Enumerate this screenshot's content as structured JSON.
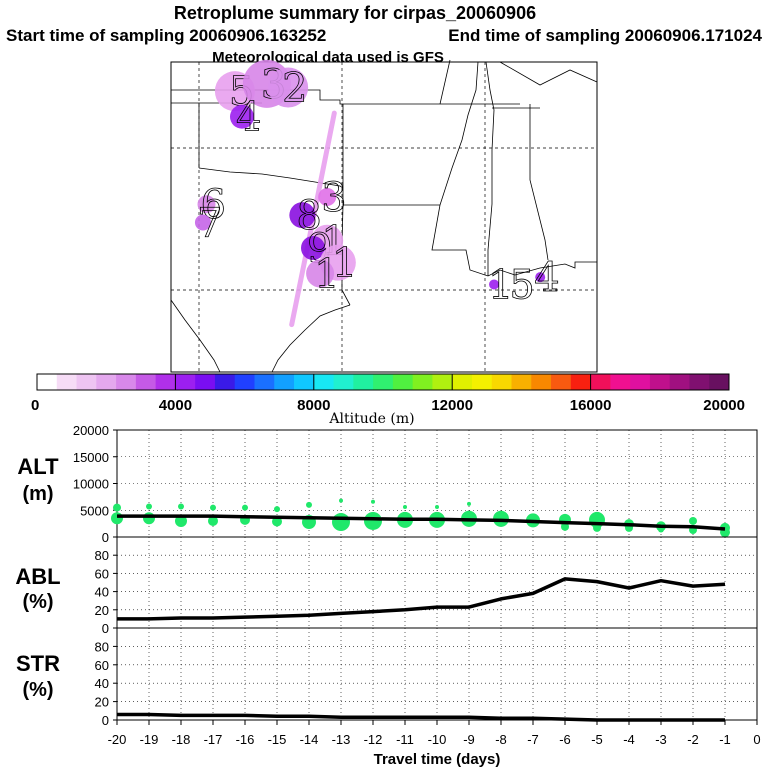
{
  "header": {
    "title": "Retroplume summary for cirpas_20060906",
    "start_label": "Start time of sampling 20060906.163252",
    "end_label": "End time of sampling 20060906.171024",
    "met_label": "Meteorological data used is GFS"
  },
  "map": {
    "markers": [
      {
        "label": "5",
        "color": "#e8a0ee",
        "lon": -96.2,
        "lat": 37.2
      },
      {
        "label": "3",
        "color": "#d785e8",
        "lon": -95.3,
        "lat": 37.4
      },
      {
        "label": "2",
        "color": "#d990ec",
        "lon": -94.7,
        "lat": 37.3
      },
      {
        "label": "4",
        "color": "#9c1ff0",
        "lon": -96.0,
        "lat": 36.5
      },
      {
        "label": "6",
        "color": "#d785e8",
        "lon": -97.0,
        "lat": 34.1
      },
      {
        "label": "7",
        "color": "#c565e8",
        "lon": -97.1,
        "lat": 33.6
      },
      {
        "label": "3",
        "color": "#e070e8",
        "lon": -93.6,
        "lat": 34.3
      },
      {
        "label": "8",
        "color": "#8a10e0",
        "lon": -94.3,
        "lat": 33.8
      },
      {
        "label": "1",
        "color": "#e8a0ee",
        "lon": -93.6,
        "lat": 33.1
      },
      {
        "label": "9",
        "color": "#8a10e0",
        "lon": -94.0,
        "lat": 32.9
      },
      {
        "label": "1",
        "color": "#e8a0ee",
        "lon": -93.3,
        "lat": 32.5
      },
      {
        "label": "1",
        "color": "#d785e8",
        "lon": -93.8,
        "lat": 32.2
      },
      {
        "label": "1",
        "color": "#9c1ff0",
        "lon": -88.9,
        "lat": 31.9
      },
      {
        "label": "5",
        "color": "#ffffff",
        "lon": -88.3,
        "lat": 31.9
      },
      {
        "label": "4",
        "color": "#9c1ff0",
        "lon": -87.6,
        "lat": 32.1
      }
    ],
    "track": [
      [
        -93.4,
        36.6
      ],
      [
        -94.1,
        33.2
      ],
      [
        -94.6,
        30.8
      ]
    ]
  },
  "colorbar": {
    "ticks": [
      "0",
      "4000",
      "8000",
      "12000",
      "16000",
      "20000"
    ],
    "label": "Altitude (m)",
    "colors": [
      "#ffffff",
      "#f6dcf6",
      "#eec4f2",
      "#e4a8ee",
      "#d888ea",
      "#c55ae6",
      "#b030ea",
      "#9c1ff0",
      "#7a0ef2",
      "#3a1ae8",
      "#2040ff",
      "#1a70ff",
      "#12a0ff",
      "#10c8ff",
      "#18e8f4",
      "#20f0d0",
      "#20f0a0",
      "#30f070",
      "#50f040",
      "#80f020",
      "#b0f010",
      "#e0f000",
      "#f4f000",
      "#f8d800",
      "#f8b000",
      "#f88800",
      "#f85a10",
      "#f82010",
      "#f0105a",
      "#f01090",
      "#e010a0",
      "#c0108c",
      "#a01080",
      "#801070",
      "#681060"
    ]
  },
  "chart_data": [
    {
      "type": "line",
      "ylabel": "ALT\n(m)",
      "ylabel_line1": "ALT",
      "ylabel_line2": "(m)",
      "ylim": [
        0,
        20000
      ],
      "yticks": [
        "0",
        "5000",
        "10000",
        "15000",
        "20000"
      ],
      "x": [
        -20,
        -19,
        -18,
        -17,
        -16,
        -15,
        -14,
        -13,
        -12,
        -11,
        -10,
        -9,
        -8,
        -7,
        -6,
        -5,
        -4,
        -3,
        -2,
        -1
      ],
      "series": [
        {
          "name": "mean altitude",
          "values": [
            3900,
            3900,
            3900,
            3900,
            3800,
            3700,
            3600,
            3500,
            3400,
            3300,
            3300,
            3200,
            3100,
            2900,
            2700,
            2500,
            2300,
            2000,
            1900,
            1500
          ]
        }
      ],
      "scatter": [
        {
          "x": -20,
          "y": 3500,
          "s": 6
        },
        {
          "x": -20,
          "y": 5500,
          "s": 4
        },
        {
          "x": -19,
          "y": 3500,
          "s": 6
        },
        {
          "x": -19,
          "y": 5700,
          "s": 3
        },
        {
          "x": -18,
          "y": 3000,
          "s": 6
        },
        {
          "x": -18,
          "y": 5700,
          "s": 3
        },
        {
          "x": -17,
          "y": 3000,
          "s": 5
        },
        {
          "x": -17,
          "y": 5500,
          "s": 3
        },
        {
          "x": -16,
          "y": 3200,
          "s": 5
        },
        {
          "x": -16,
          "y": 5500,
          "s": 3
        },
        {
          "x": -15,
          "y": 2900,
          "s": 5
        },
        {
          "x": -15,
          "y": 5200,
          "s": 3
        },
        {
          "x": -14,
          "y": 2800,
          "s": 7
        },
        {
          "x": -14,
          "y": 6000,
          "s": 3
        },
        {
          "x": -13,
          "y": 2800,
          "s": 9
        },
        {
          "x": -13,
          "y": 6800,
          "s": 2
        },
        {
          "x": -12,
          "y": 3000,
          "s": 9
        },
        {
          "x": -12,
          "y": 6600,
          "s": 2
        },
        {
          "x": -11,
          "y": 3200,
          "s": 8
        },
        {
          "x": -11,
          "y": 5600,
          "s": 2
        },
        {
          "x": -10,
          "y": 3200,
          "s": 8
        },
        {
          "x": -10,
          "y": 5600,
          "s": 2
        },
        {
          "x": -9,
          "y": 3400,
          "s": 8
        },
        {
          "x": -9,
          "y": 6200,
          "s": 2
        },
        {
          "x": -8,
          "y": 3400,
          "s": 8
        },
        {
          "x": -7,
          "y": 3100,
          "s": 7
        },
        {
          "x": -6,
          "y": 3200,
          "s": 6
        },
        {
          "x": -6,
          "y": 1900,
          "s": 4
        },
        {
          "x": -5,
          "y": 3200,
          "s": 8
        },
        {
          "x": -5,
          "y": 1700,
          "s": 4
        },
        {
          "x": -4,
          "y": 2400,
          "s": 5
        },
        {
          "x": -4,
          "y": 1700,
          "s": 4
        },
        {
          "x": -3,
          "y": 2000,
          "s": 5
        },
        {
          "x": -3,
          "y": 1400,
          "s": 3
        },
        {
          "x": -2,
          "y": 3000,
          "s": 4
        },
        {
          "x": -2,
          "y": 1300,
          "s": 4
        },
        {
          "x": -1,
          "y": 1700,
          "s": 5
        },
        {
          "x": -1,
          "y": 900,
          "s": 5
        }
      ]
    },
    {
      "type": "line",
      "ylabel_line1": "ABL",
      "ylabel_line2": "(%)",
      "ylim": [
        0,
        100
      ],
      "yticks": [
        "0",
        "20",
        "40",
        "60",
        "80"
      ],
      "x": [
        -20,
        -19,
        -18,
        -17,
        -16,
        -15,
        -14,
        -13,
        -12,
        -11,
        -10,
        -9,
        -8,
        -7,
        -6,
        -5,
        -4,
        -3,
        -2,
        -1
      ],
      "series": [
        {
          "name": "ABL fraction",
          "values": [
            10,
            10,
            11,
            11,
            12,
            13,
            14,
            16,
            18,
            20,
            23,
            23,
            32,
            38,
            54,
            51,
            44,
            52,
            46,
            48
          ]
        }
      ]
    },
    {
      "type": "line",
      "ylabel_line1": "STR",
      "ylabel_line2": "(%)",
      "ylim": [
        0,
        100
      ],
      "yticks": [
        "0",
        "20",
        "40",
        "60",
        "80"
      ],
      "x": [
        -20,
        -19,
        -18,
        -17,
        -16,
        -15,
        -14,
        -13,
        -12,
        -11,
        -10,
        -9,
        -8,
        -7,
        -6,
        -5,
        -4,
        -3,
        -2,
        -1
      ],
      "series": [
        {
          "name": "stratospheric fraction",
          "values": [
            6,
            6,
            5,
            5,
            5,
            4,
            4,
            3,
            3,
            3,
            3,
            3,
            2,
            2,
            1,
            0,
            0,
            0,
            0,
            0
          ]
        }
      ],
      "xticks": [
        "-20",
        "-19",
        "-18",
        "-17",
        "-16",
        "-15",
        "-14",
        "-13",
        "-12",
        "-11",
        "-10",
        "-9",
        "-8",
        "-7",
        "-6",
        "-5",
        "-4",
        "-3",
        "-2",
        "-1",
        "0"
      ],
      "xlabel": "Travel time (days)"
    }
  ]
}
